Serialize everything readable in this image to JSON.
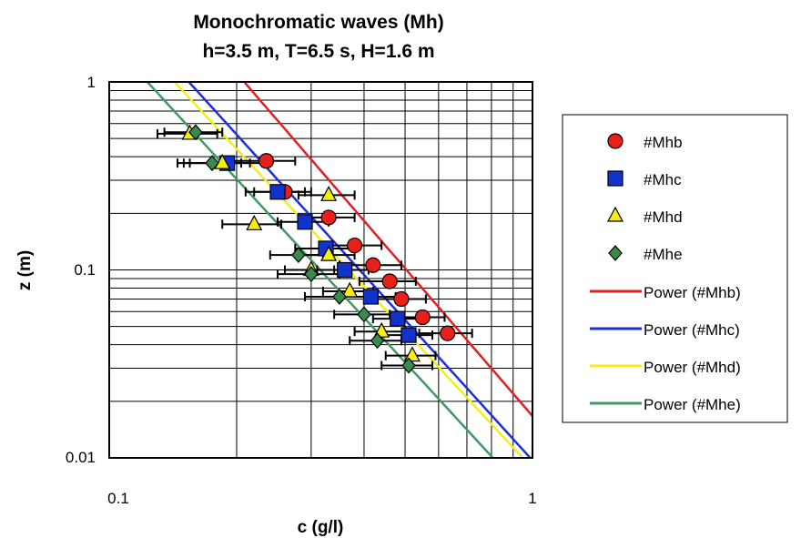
{
  "chart_data": {
    "type": "scatter",
    "title": "Monochromatic waves (Mh)",
    "subtitle": "h=3.5 m, T=6.5 s, H=1.6 m",
    "xlabel": "c (g/l)",
    "ylabel": "z (m)",
    "xscale": "log",
    "yscale": "log",
    "xlim": [
      0.1,
      1
    ],
    "ylim": [
      0.01,
      1
    ],
    "x_ticks": [
      "0.1",
      "1"
    ],
    "y_ticks": [
      "0.01",
      "0.1",
      "1"
    ],
    "grid": "log-minor",
    "legend_position": "right",
    "series": [
      {
        "name": "#Mhb",
        "marker": "circle",
        "color": "#e8201a",
        "x": [
          0.235,
          0.26,
          0.33,
          0.38,
          0.42,
          0.46,
          0.49,
          0.55,
          0.63
        ],
        "y": [
          0.38,
          0.26,
          0.19,
          0.135,
          0.106,
          0.087,
          0.07,
          0.056,
          0.046
        ],
        "xerr": [
          0.04,
          0.04,
          0.05,
          0.06,
          0.07,
          0.07,
          0.07,
          0.07,
          0.09
        ]
      },
      {
        "name": "#Mhc",
        "marker": "square",
        "color": "#1133cc",
        "x": [
          0.19,
          0.25,
          0.29,
          0.325,
          0.36,
          0.415,
          0.48,
          0.51
        ],
        "y": [
          0.37,
          0.26,
          0.18,
          0.13,
          0.1,
          0.072,
          0.055,
          0.045
        ],
        "xerr": [
          0.04,
          0.04,
          0.04,
          0.05,
          0.05,
          0.06,
          0.06,
          0.07
        ]
      },
      {
        "name": "#Mhd",
        "marker": "triangle",
        "color": "#f4ec12",
        "x": [
          0.155,
          0.185,
          0.22,
          0.33,
          0.33,
          0.3,
          0.37,
          0.44,
          0.52
        ],
        "y": [
          0.53,
          0.37,
          0.175,
          0.25,
          0.12,
          0.1,
          0.077,
          0.047,
          0.035
        ],
        "xerr": [
          0.025,
          0.03,
          0.035,
          0.05,
          0.05,
          0.04,
          0.05,
          0.06,
          0.07
        ]
      },
      {
        "name": "#Mhe",
        "marker": "diamond",
        "color": "#3a8a4e",
        "x": [
          0.16,
          0.175,
          0.28,
          0.3,
          0.35,
          0.4,
          0.43,
          0.51
        ],
        "y": [
          0.54,
          0.37,
          0.12,
          0.095,
          0.072,
          0.058,
          0.042,
          0.031
        ],
        "xerr": [
          0.025,
          0.03,
          0.04,
          0.05,
          0.06,
          0.06,
          0.06,
          0.07
        ]
      }
    ],
    "trendlines": [
      {
        "name": "Power (#Mhb)",
        "color": "#e02020",
        "a": 0.0167,
        "b": -2.61
      },
      {
        "name": "Power (#Mhc)",
        "color": "#1c2fd8",
        "a": 0.0097,
        "b": -2.48
      },
      {
        "name": "Power (#Mhd)",
        "color": "#f5ec20",
        "a": 0.0088,
        "b": -2.43
      },
      {
        "name": "Power (#Mhe)",
        "color": "#3f9a63",
        "a": 0.0059,
        "b": -2.45
      }
    ]
  }
}
